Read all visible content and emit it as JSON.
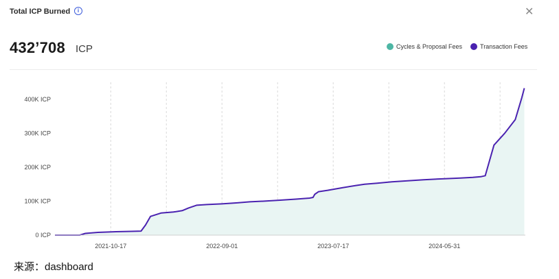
{
  "header": {
    "title": "Total ICP Burned",
    "info_icon": "info-icon",
    "close_icon": "close-icon"
  },
  "summary": {
    "value": "432’708",
    "unit": "ICP"
  },
  "legend": [
    {
      "label": "Cycles & Proposal Fees",
      "color": "#4db6a4"
    },
    {
      "label": "Transaction Fees",
      "color": "#4a22b0"
    }
  ],
  "caption": "来源：dashboard",
  "chart_data": {
    "type": "area",
    "x_type": "date",
    "xlim": [
      "2021-05-10",
      "2025-01-18"
    ],
    "ylim": [
      0,
      450000
    ],
    "ytick_values": [
      0,
      100000,
      200000,
      300000,
      400000
    ],
    "ytick_labels": [
      "0 ICP",
      "100K ICP",
      "200K ICP",
      "300K ICP",
      "400K ICP"
    ],
    "xtick_values": [
      "2021-10-17",
      "2022-09-01",
      "2023-07-17",
      "2024-05-31"
    ],
    "xtick_labels": [
      "2021-10-17",
      "2022-09-01",
      "2023-07-17",
      "2024-05-31"
    ],
    "grid": "vertical-dashed",
    "series": [
      {
        "name": "Transaction Fees",
        "color": "#4a22b0",
        "fill": "#e9f5f3",
        "x": [
          "2021-05-10",
          "2021-07-20",
          "2021-08-05",
          "2021-09-10",
          "2021-11-01",
          "2021-12-15",
          "2022-01-12",
          "2022-01-25",
          "2022-02-08",
          "2022-03-10",
          "2022-04-15",
          "2022-05-10",
          "2022-05-28",
          "2022-06-20",
          "2022-07-20",
          "2022-09-01",
          "2022-10-15",
          "2022-11-20",
          "2023-01-01",
          "2023-02-15",
          "2023-04-01",
          "2023-05-10",
          "2023-05-20",
          "2023-05-25",
          "2023-06-05",
          "2023-07-01",
          "2023-08-15",
          "2023-09-20",
          "2023-10-15",
          "2023-11-20",
          "2024-01-01",
          "2024-02-15",
          "2024-04-01",
          "2024-05-31",
          "2024-07-15",
          "2024-08-20",
          "2024-09-12",
          "2024-09-25",
          "2024-10-20",
          "2024-11-20",
          "2024-12-20",
          "2025-01-08",
          "2025-01-15"
        ],
        "y": [
          0,
          0,
          5000,
          8000,
          10000,
          11000,
          12000,
          30000,
          55000,
          65000,
          68000,
          72000,
          80000,
          88000,
          90000,
          92000,
          95000,
          98000,
          100000,
          103000,
          106000,
          109000,
          111000,
          120000,
          128000,
          132000,
          140000,
          146000,
          150000,
          153000,
          157000,
          160000,
          163000,
          166000,
          168000,
          170000,
          172000,
          175000,
          265000,
          300000,
          340000,
          405000,
          432708
        ]
      }
    ]
  }
}
